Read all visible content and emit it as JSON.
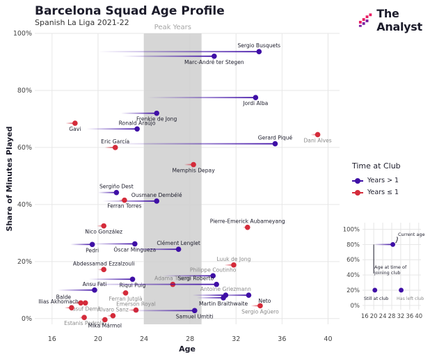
{
  "header": {
    "title": "Barcelona Squad Age Profile",
    "subtitle": "Spanish La Liga 2021-22",
    "brand": "The Analyst"
  },
  "legend": {
    "title": "Time at Club",
    "items": [
      {
        "label": "Years > 1",
        "color": "#3f0fa6"
      },
      {
        "label": "Years ≤ 1",
        "color": "#d42b3a"
      }
    ]
  },
  "chart_data": [
    {
      "type": "scatter",
      "title": "",
      "xlabel": "Age",
      "ylabel": "Share of Minutes Played",
      "xlim": [
        14.5,
        41
      ],
      "ylim": [
        -0.02,
        1.0
      ],
      "x_ticks": [
        "16",
        "20",
        "24",
        "28",
        "32",
        "36",
        "40"
      ],
      "y_ticks": [
        "0%",
        "20%",
        "40%",
        "60%",
        "80%",
        "100%"
      ],
      "grid": true,
      "shaded_region": {
        "label": "Peak Years",
        "x_range": [
          24,
          29
        ]
      },
      "series": [
        {
          "name": "Years > 1",
          "color": "#3f0fa6"
        },
        {
          "name": "Years ≤ 1",
          "color": "#d42b3a"
        }
      ],
      "points": [
        {
          "label": "Sergio Busquets",
          "x": 34.0,
          "y": 0.936,
          "joined_age": 20.0,
          "group": "Years > 1"
        },
        {
          "label": "Marc-André ter Stegen",
          "x": 30.1,
          "y": 0.92,
          "joined_age": 22.1,
          "group": "Years > 1"
        },
        {
          "label": "Jordi Alba",
          "x": 33.7,
          "y": 0.775,
          "joined_age": 24.3,
          "group": "Years > 1"
        },
        {
          "label": "Frenkie de Jong",
          "x": 25.1,
          "y": 0.72,
          "joined_age": 22.0,
          "group": "Years > 1"
        },
        {
          "label": "Gavi",
          "x": 18.0,
          "y": 0.685,
          "joined_age": 17.2,
          "group": "Years ≤ 1"
        },
        {
          "label": "Ronald Araújo",
          "x": 23.4,
          "y": 0.665,
          "joined_age": 19.0,
          "group": "Years > 1"
        },
        {
          "label": "Gerard Piqué",
          "x": 35.4,
          "y": 0.613,
          "joined_age": 21.3,
          "group": "Years > 1"
        },
        {
          "label": "Dani Alves",
          "x": 39.1,
          "y": 0.645,
          "joined_age": 38.5,
          "group": "Years ≤ 1"
        },
        {
          "label": "Eric García",
          "x": 21.5,
          "y": 0.6,
          "joined_age": 20.6,
          "group": "Years ≤ 1"
        },
        {
          "label": "Memphis Depay",
          "x": 28.3,
          "y": 0.54,
          "joined_age": 27.5,
          "group": "Years ≤ 1"
        },
        {
          "label": "Sergiño Dest",
          "x": 21.6,
          "y": 0.442,
          "joined_age": 20.0,
          "group": "Years > 1"
        },
        {
          "label": "Ousmane Dembélé",
          "x": 25.1,
          "y": 0.412,
          "joined_age": 20.4,
          "group": "Years > 1"
        },
        {
          "label": "Ferran Torres",
          "x": 22.3,
          "y": 0.415,
          "joined_age": 21.8,
          "group": "Years ≤ 1"
        },
        {
          "label": "Pierre-Emerick Aubameyang",
          "x": 33.0,
          "y": 0.32,
          "joined_age": 32.6,
          "group": "Years ≤ 1"
        },
        {
          "label": "Nico González",
          "x": 20.5,
          "y": 0.325,
          "joined_age": 19.9,
          "group": "Years ≤ 1"
        },
        {
          "label": "Pedri",
          "x": 19.5,
          "y": 0.26,
          "joined_age": 17.6,
          "group": "Years > 1"
        },
        {
          "label": "Óscar Mingueza",
          "x": 23.2,
          "y": 0.262,
          "joined_age": 19.5,
          "group": "Years > 1"
        },
        {
          "label": "Clément Lenglet",
          "x": 27.0,
          "y": 0.243,
          "joined_age": 23.0,
          "group": "Years > 1"
        },
        {
          "label": "Luuk de Jong",
          "x": 31.8,
          "y": 0.188,
          "joined_age": 31.0,
          "group": "Years ≤ 1"
        },
        {
          "label": "Abdessamad Ezzalzouli",
          "x": 20.5,
          "y": 0.172,
          "joined_age": 20.0,
          "group": "Years ≤ 1"
        },
        {
          "label": "Philippe Coutinho",
          "x": 30.0,
          "y": 0.15,
          "joined_age": 25.6,
          "group": "Years > 1"
        },
        {
          "label": "Riqui Puig",
          "x": 23.0,
          "y": 0.138,
          "joined_age": 19.2,
          "group": "Years > 1"
        },
        {
          "label": "Adama Traoré",
          "x": 26.5,
          "y": 0.12,
          "joined_age": 26.2,
          "group": "Years ≤ 1"
        },
        {
          "label": "Sergi Roberto",
          "x": 30.3,
          "y": 0.12,
          "joined_age": 18.5,
          "group": "Years > 1"
        },
        {
          "label": "Ansu Fati",
          "x": 19.7,
          "y": 0.1,
          "joined_age": 16.5,
          "group": "Years > 1"
        },
        {
          "label": "Ferran Jutglà",
          "x": 22.4,
          "y": 0.09,
          "joined_age": 22.0,
          "group": "Years ≤ 1"
        },
        {
          "label": "Antoine Griezmann",
          "x": 31.1,
          "y": 0.082,
          "joined_age": 28.2,
          "group": "Years > 1"
        },
        {
          "label": "Neto",
          "x": 33.1,
          "y": 0.082,
          "joined_age": 29.8,
          "group": "Years > 1"
        },
        {
          "label": "Martin Braithwaite",
          "x": 30.9,
          "y": 0.073,
          "joined_age": 28.6,
          "group": "Years > 1"
        },
        {
          "label": "Yusuf Demir",
          "x": 18.9,
          "y": 0.055,
          "joined_age": 18.3,
          "group": "Years ≤ 1"
        },
        {
          "label": "Balde",
          "x": 18.5,
          "y": 0.055,
          "joined_age": 17.8,
          "group": "Years ≤ 1"
        },
        {
          "label": "Sergio Agüero",
          "x": 34.1,
          "y": 0.045,
          "joined_age": 33.3,
          "group": "Years ≤ 1"
        },
        {
          "label": "Emerson Royal",
          "x": 23.3,
          "y": 0.03,
          "joined_age": 22.6,
          "group": "Years ≤ 1"
        },
        {
          "label": "Samuel Umtiti",
          "x": 28.4,
          "y": 0.028,
          "joined_age": 22.8,
          "group": "Years > 1"
        },
        {
          "label": "Ilias Akhomach",
          "x": 17.7,
          "y": 0.038,
          "joined_age": 17.1,
          "group": "Years ≤ 1"
        },
        {
          "label": "Álvaro Sanz",
          "x": 21.3,
          "y": 0.01,
          "joined_age": 20.8,
          "group": "Years ≤ 1"
        },
        {
          "label": "Estanis Pedrola",
          "x": 18.8,
          "y": 0.004,
          "joined_age": 18.4,
          "group": "Years ≤ 1"
        },
        {
          "label": "Mika Mármol",
          "x": 20.6,
          "y": -0.004,
          "joined_age": 20.2,
          "group": "Years ≤ 1"
        }
      ]
    },
    {
      "type": "scatter",
      "title": "",
      "xlim": [
        15,
        41
      ],
      "ylim": [
        -0.02,
        1.05
      ],
      "x_ticks": [
        "16",
        "20",
        "24",
        "28",
        "32",
        "36",
        "40"
      ],
      "y_ticks": [
        "0%",
        "20%",
        "40%",
        "60%",
        "80%",
        "100%"
      ],
      "annotations": [
        "Current age",
        "Age at time of joining club",
        "Still at club",
        "Has left club"
      ],
      "points": [
        {
          "x": 28.5,
          "y": 0.8,
          "role": "Current age"
        },
        {
          "x": 20.5,
          "y": 0.2,
          "role": "Still at club"
        },
        {
          "x": 32.2,
          "y": 0.2,
          "role": "Has left club"
        }
      ]
    }
  ]
}
